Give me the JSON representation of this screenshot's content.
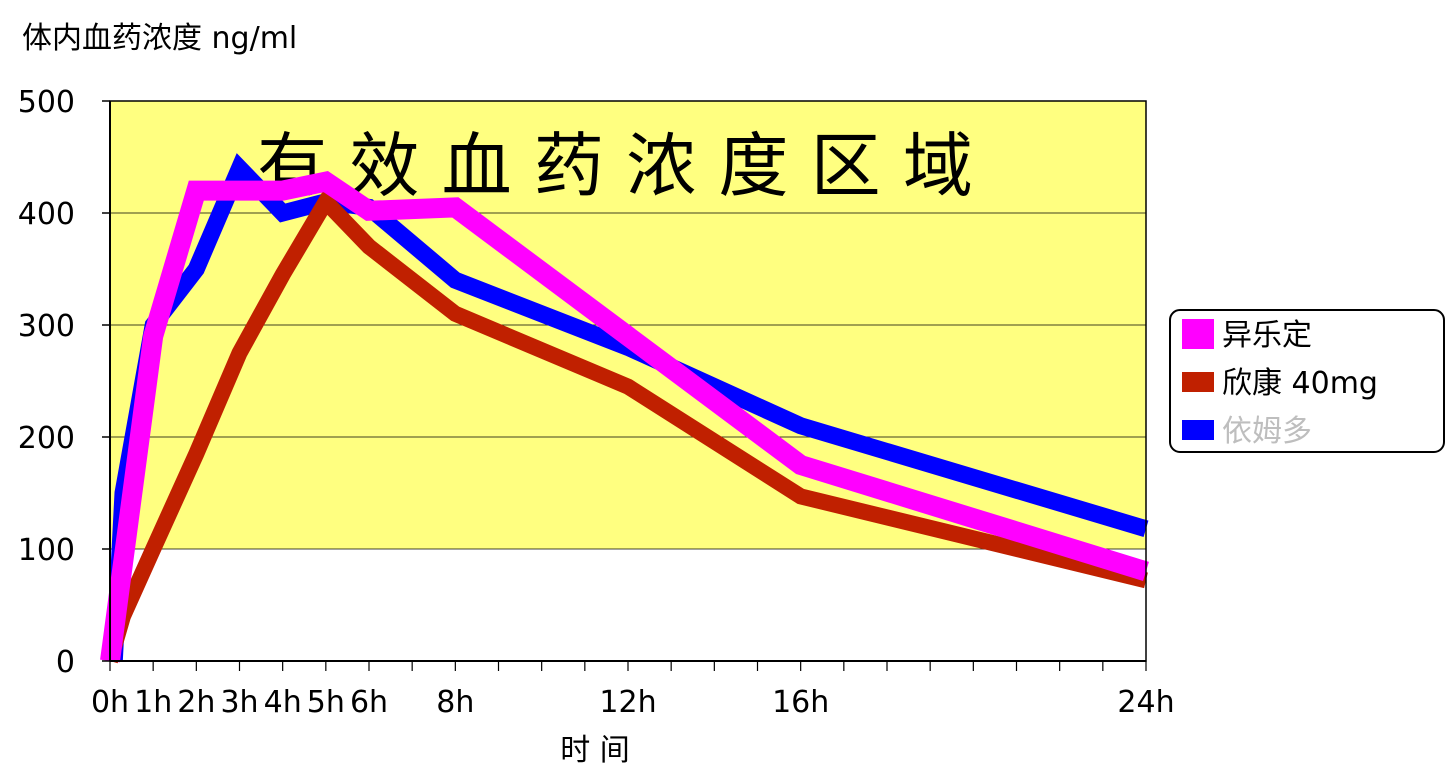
{
  "chart_data": {
    "type": "line",
    "ylabel": "体内血药浓度 ng/ml",
    "xlabel": "时 间",
    "band_label": "有 效 血 药 浓 度 区 域",
    "band_range": [
      100,
      500
    ],
    "ylim": [
      0,
      500
    ],
    "xlim": [
      0,
      24
    ],
    "yticks": [
      0,
      100,
      200,
      300,
      400,
      500
    ],
    "xticks": [
      {
        "x": 0,
        "label": "0h"
      },
      {
        "x": 1,
        "label": "1h"
      },
      {
        "x": 2,
        "label": "2h"
      },
      {
        "x": 3,
        "label": "3h"
      },
      {
        "x": 4,
        "label": "4h"
      },
      {
        "x": 5,
        "label": "5h"
      },
      {
        "x": 6,
        "label": "6h"
      },
      {
        "x": 8,
        "label": "8h"
      },
      {
        "x": 12,
        "label": "12h"
      },
      {
        "x": 16,
        "label": "16h"
      },
      {
        "x": 24,
        "label": "24h"
      }
    ],
    "minor_tick_step": 1,
    "grid": true,
    "legend_position": "right",
    "series": [
      {
        "name": "依姆多",
        "color": "#0000ff",
        "x": [
          0.1,
          0.3,
          1,
          2,
          3,
          4,
          5,
          6,
          8,
          12,
          16,
          24
        ],
        "y": [
          0,
          150,
          300,
          350,
          440,
          400,
          410,
          405,
          340,
          280,
          210,
          118
        ]
      },
      {
        "name": "欣康 40mg",
        "color": "#c02000",
        "x": [
          0,
          0.3,
          1,
          2,
          3,
          4,
          5,
          6,
          8,
          12,
          16,
          24
        ],
        "y": [
          0,
          40,
          100,
          185,
          275,
          345,
          410,
          370,
          310,
          245,
          147,
          72
        ]
      },
      {
        "name": "异乐定",
        "color": "#ff00ff",
        "x": [
          0,
          1,
          2,
          3,
          4,
          5,
          6,
          8,
          12,
          16,
          24
        ],
        "y": [
          0,
          290,
          420,
          420,
          420,
          428,
          402,
          405,
          290,
          175,
          80
        ]
      }
    ],
    "legend_order": [
      "异乐定",
      "欣康 40mg",
      "依姆多"
    ],
    "colors": {
      "band": "#ffff80",
      "band_text": "#c8c8c8",
      "axis": "#000000",
      "gridline": "#000000",
      "legend_muted_text": "#bebebe"
    }
  }
}
